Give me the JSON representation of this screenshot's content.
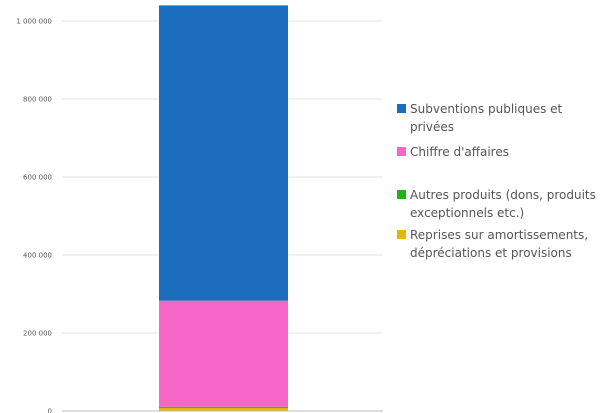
{
  "chart_data": {
    "type": "bar",
    "stacked": true,
    "categories": [
      ""
    ],
    "ylim": [
      0,
      1000000
    ],
    "yticks": [
      0,
      200000,
      400000,
      600000,
      800000,
      1000000
    ],
    "ytick_labels": [
      "0",
      "200 000",
      "400 000",
      "600 000",
      "800 000",
      "1 000 000"
    ],
    "grid": true,
    "legend_position": "right",
    "title": "",
    "xlabel": "",
    "ylabel": "",
    "series": [
      {
        "name": "Reprises sur amortissements, dépréciations et provisions",
        "values": [
          8000
        ],
        "color": "#e6b700"
      },
      {
        "name": "Autres produits (dons, produits exceptionnels etc.)",
        "values": [
          3000
        ],
        "color": "#1db312"
      },
      {
        "name": "Chiffre d'affaires",
        "values": [
          272000
        ],
        "color": "#f766c8"
      },
      {
        "name": "Subventions publiques et privées",
        "values": [
          757000
        ],
        "color": "#1a6ebd"
      }
    ],
    "legend_order": [
      3,
      2,
      1,
      0
    ]
  }
}
